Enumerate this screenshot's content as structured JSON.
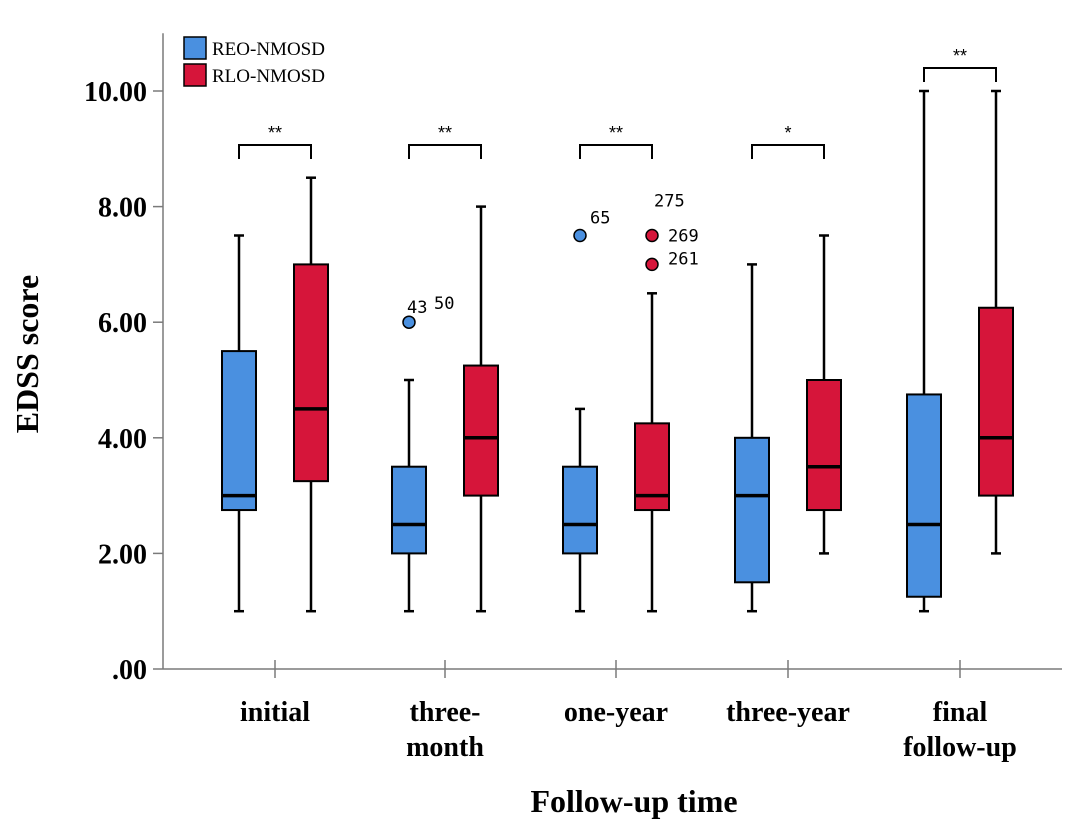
{
  "chart_data": {
    "type": "boxplot",
    "xlabel": "Follow-up time",
    "ylabel": "EDSS score",
    "ylim": [
      0,
      11
    ],
    "ytick_values": [
      0,
      2,
      4,
      6,
      8,
      10
    ],
    "ytick_labels": [
      ".00",
      "2.00",
      "4.00",
      "6.00",
      "8.00",
      "10.00"
    ],
    "legend_position": "top-left",
    "series": [
      {
        "name": "REO-NMOSD",
        "color": "#4a90e0"
      },
      {
        "name": "RLO-NMOSD",
        "color": "#d6153a"
      }
    ],
    "groups": [
      {
        "label": [
          "initial"
        ],
        "significance": "**",
        "boxes": [
          {
            "series": "REO-NMOSD",
            "min": 1.0,
            "q1": 2.75,
            "median": 3.0,
            "q3": 5.5,
            "max": 7.5,
            "outliers": []
          },
          {
            "series": "RLO-NMOSD",
            "min": 1.0,
            "q1": 3.25,
            "median": 4.5,
            "q3": 7.0,
            "max": 8.5,
            "outliers": []
          }
        ]
      },
      {
        "label": [
          "three-",
          "month"
        ],
        "significance": "**",
        "boxes": [
          {
            "series": "REO-NMOSD",
            "min": 1.0,
            "q1": 2.0,
            "median": 2.5,
            "q3": 3.5,
            "max": 5.0,
            "outliers": [
              {
                "value": 6.0,
                "label": "43"
              },
              {
                "value": 6.0,
                "label": "50"
              }
            ]
          },
          {
            "series": "RLO-NMOSD",
            "min": 1.0,
            "q1": 3.0,
            "median": 4.0,
            "q3": 5.25,
            "max": 8.0,
            "outliers": []
          }
        ]
      },
      {
        "label": [
          "one-year"
        ],
        "significance": "**",
        "boxes": [
          {
            "series": "REO-NMOSD",
            "min": 1.0,
            "q1": 2.0,
            "median": 2.5,
            "q3": 3.5,
            "max": 4.5,
            "outliers": [
              {
                "value": 7.5,
                "label": "65"
              }
            ]
          },
          {
            "series": "RLO-NMOSD",
            "min": 1.0,
            "q1": 2.75,
            "median": 3.0,
            "q3": 4.25,
            "max": 6.5,
            "outliers": [
              {
                "value": 7.5,
                "label": "275"
              },
              {
                "value": 7.5,
                "label": "269"
              },
              {
                "value": 7.0,
                "label": "261"
              }
            ]
          }
        ]
      },
      {
        "label": [
          "three-year"
        ],
        "significance": "*",
        "boxes": [
          {
            "series": "REO-NMOSD",
            "min": 1.0,
            "q1": 1.5,
            "median": 3.0,
            "q3": 4.0,
            "max": 7.0,
            "outliers": []
          },
          {
            "series": "RLO-NMOSD",
            "min": 2.0,
            "q1": 2.75,
            "median": 3.5,
            "q3": 5.0,
            "max": 7.5,
            "outliers": []
          }
        ]
      },
      {
        "label": [
          "final",
          "follow-up"
        ],
        "significance": "**",
        "boxes": [
          {
            "series": "REO-NMOSD",
            "min": 1.0,
            "q1": 1.25,
            "median": 2.5,
            "q3": 4.75,
            "max": 10.0,
            "outliers": []
          },
          {
            "series": "RLO-NMOSD",
            "min": 2.0,
            "q1": 3.0,
            "median": 4.0,
            "q3": 6.25,
            "max": 10.0,
            "outliers": []
          }
        ]
      }
    ]
  }
}
